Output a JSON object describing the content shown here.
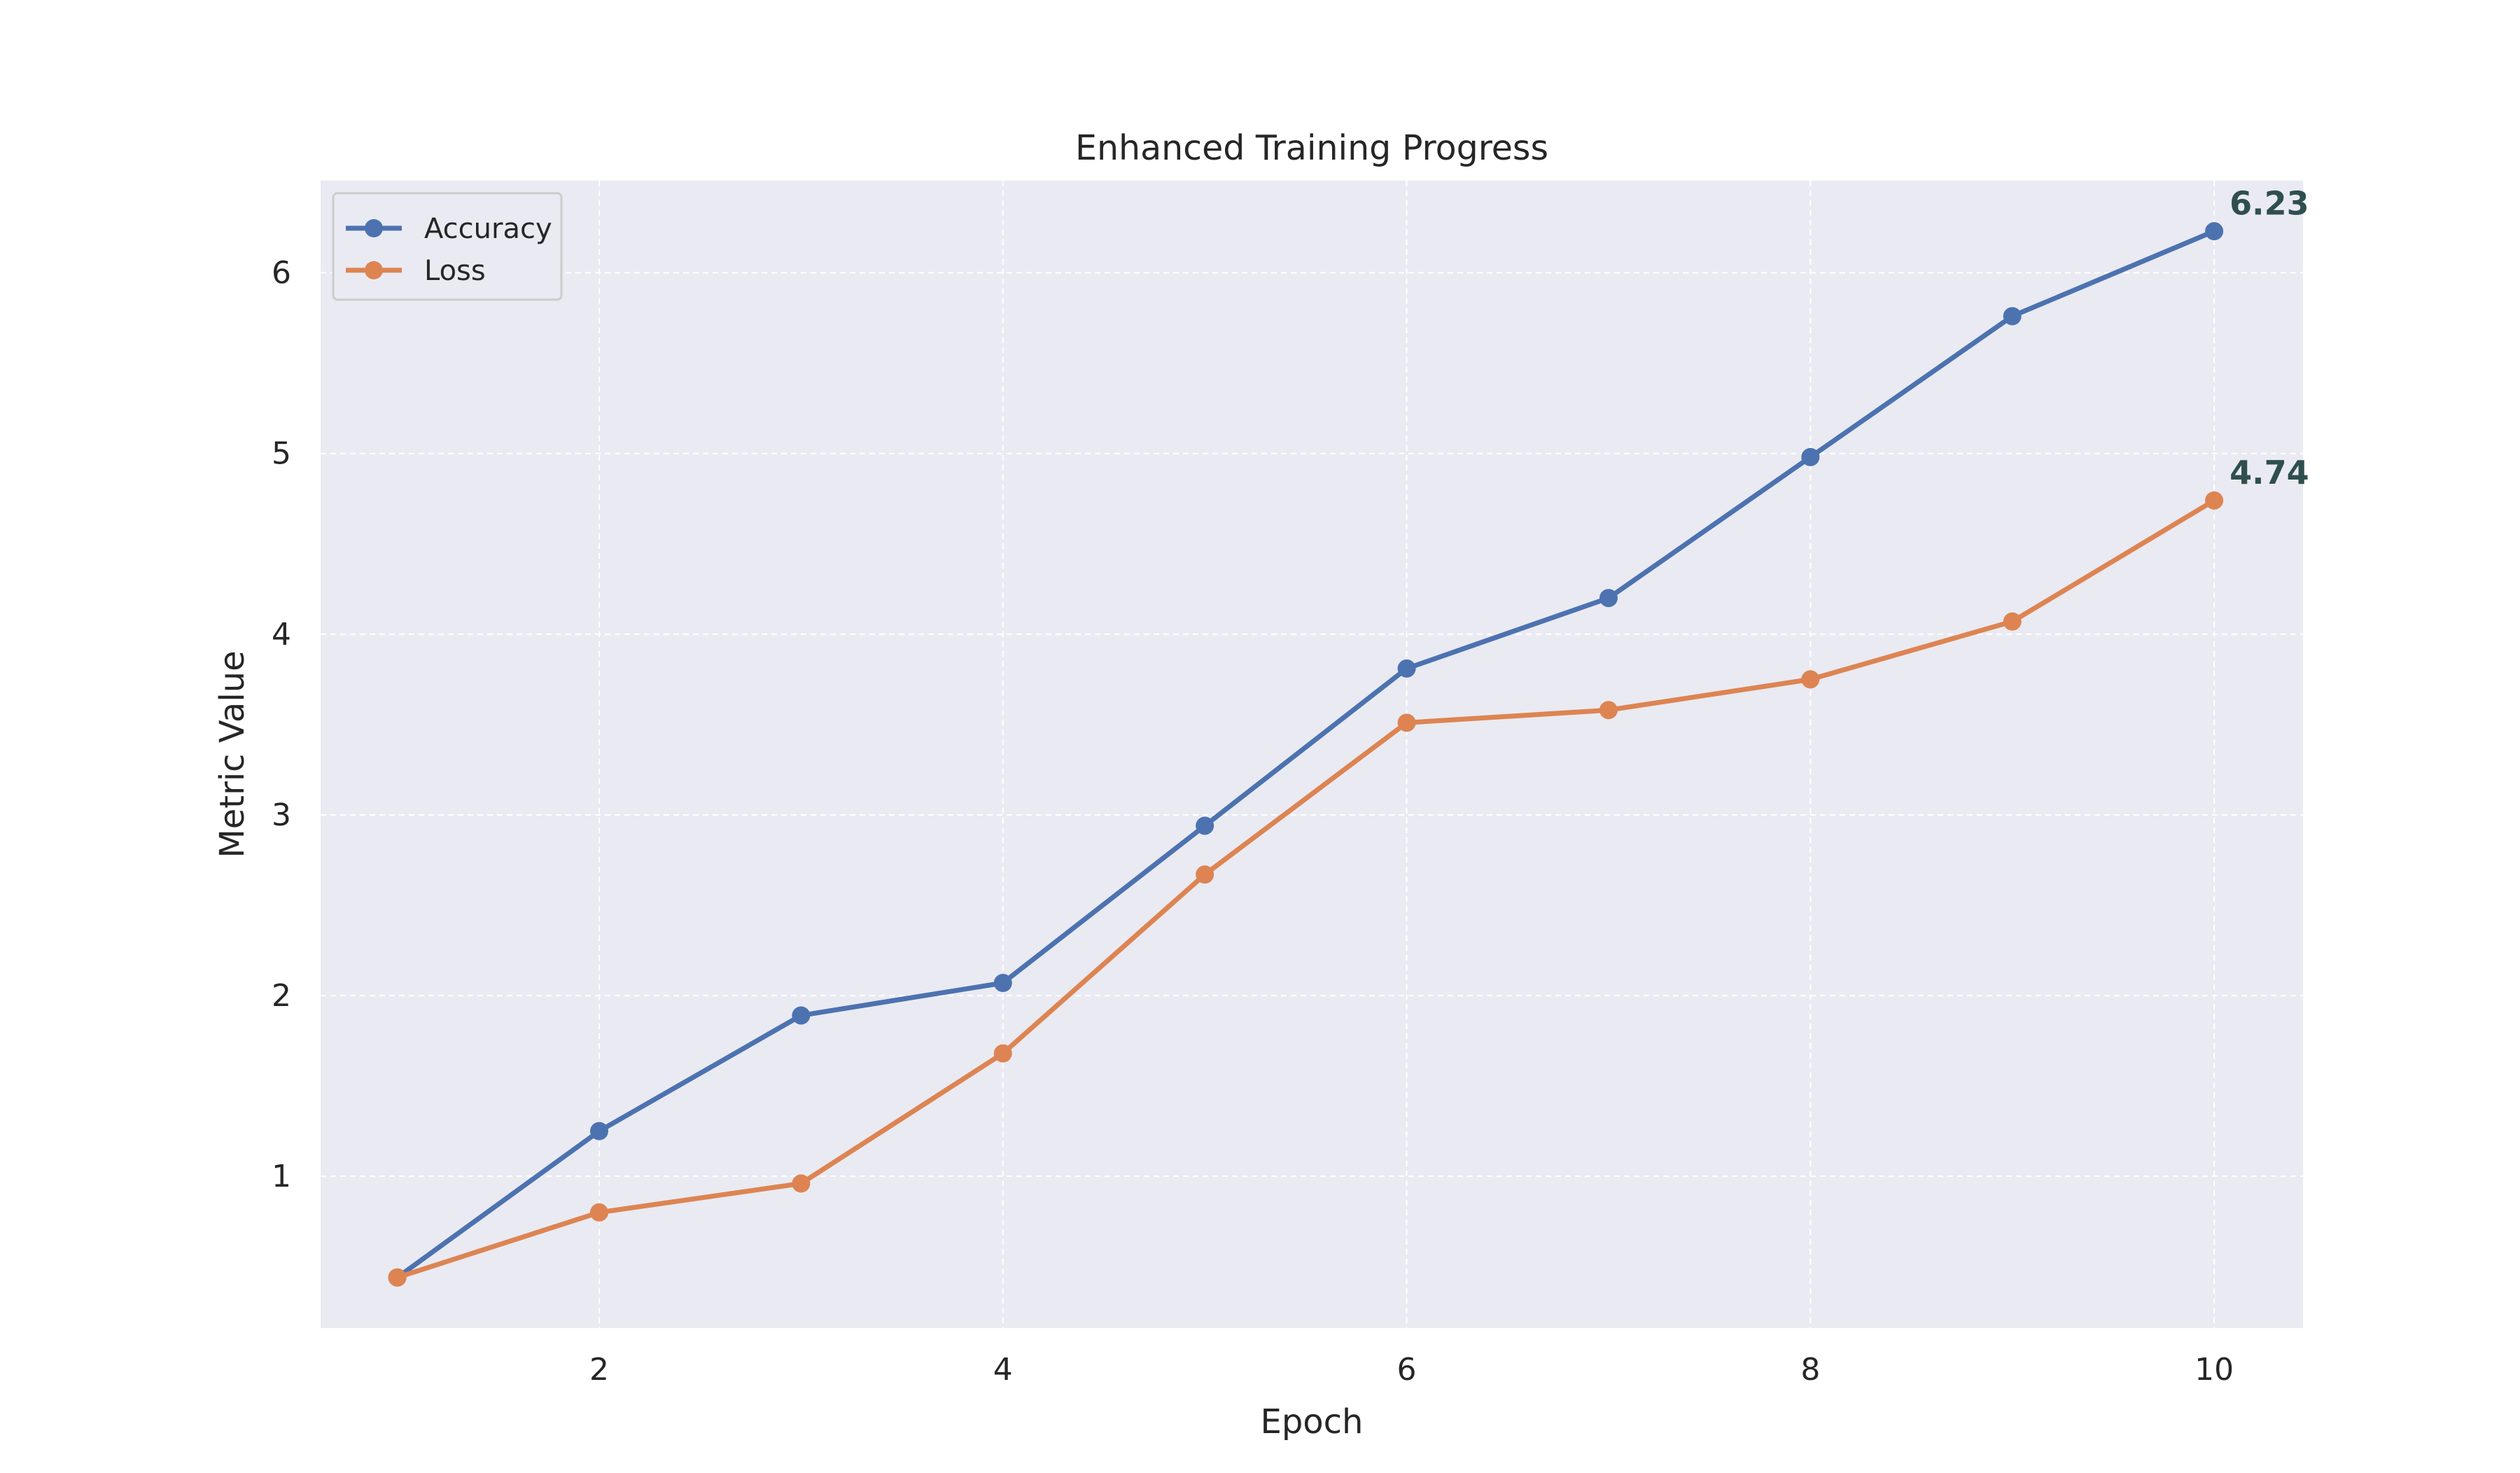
{
  "chart_data": {
    "type": "line",
    "title": "Enhanced Training Progress",
    "xlabel": "Epoch",
    "ylabel": "Metric Value",
    "x": [
      1,
      2,
      3,
      4,
      5,
      6,
      7,
      8,
      9,
      10
    ],
    "xlim": [
      0.62,
      10.44
    ],
    "ylim": [
      0.16,
      6.51
    ],
    "xticks": [
      2,
      4,
      6,
      8,
      10
    ],
    "yticks": [
      1,
      2,
      3,
      4,
      5,
      6
    ],
    "grid": true,
    "legend_position": "top-left",
    "series": [
      {
        "name": "Accuracy",
        "color": "#4c72b0",
        "values": [
          0.44,
          1.25,
          1.89,
          2.07,
          2.94,
          3.81,
          4.2,
          4.98,
          5.76,
          6.23
        ],
        "end_label": "6.23"
      },
      {
        "name": "Loss",
        "color": "#dd8452",
        "values": [
          0.44,
          0.8,
          0.96,
          1.68,
          2.67,
          3.51,
          3.58,
          3.75,
          4.07,
          4.74
        ],
        "end_label": "4.74"
      }
    ],
    "colors": {
      "plot_background": "#eaeaf2",
      "grid": "#ffffff",
      "label_text": "#2f4f4f"
    }
  }
}
